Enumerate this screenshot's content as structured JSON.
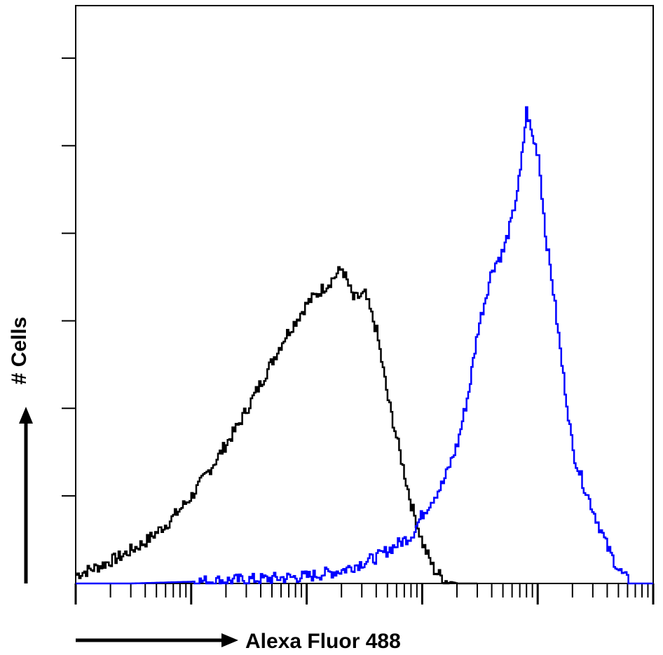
{
  "chart_data": {
    "type": "line",
    "title": "",
    "xlabel": "Alexa Fluor 488",
    "ylabel": "# Cells",
    "x_scale": "log",
    "xlim": [
      1,
      100000
    ],
    "ylim": [
      0,
      660
    ],
    "grid": false,
    "tick_labels_printed": false,
    "series": [
      {
        "color": "#000000",
        "x": [
          1,
          1.6,
          2.5,
          4,
          6.3,
          10,
          16,
          25,
          40,
          63,
          100,
          158,
          200,
          251,
          316,
          398,
          501,
          631,
          794,
          1000,
          1259,
          1585,
          2000,
          2500,
          3000
        ],
        "y": [
          10,
          20,
          32,
          48,
          70,
          100,
          140,
          180,
          230,
          280,
          320,
          345,
          360,
          325,
          330,
          288,
          210,
          150,
          90,
          45,
          15,
          3,
          0,
          0,
          0
        ]
      },
      {
        "color": "#0000ff",
        "x": [
          1,
          3,
          10,
          40,
          100,
          200,
          400,
          800,
          1000,
          1500,
          2000,
          2500,
          3000,
          4000,
          5000,
          6000,
          7000,
          7900,
          8900,
          10000,
          11500,
          13000,
          16000,
          20000,
          25000,
          31600,
          40000,
          50000,
          63000,
          100000
        ],
        "y": [
          0,
          0,
          2,
          5,
          8,
          15,
          30,
          55,
          80,
          115,
          160,
          220,
          290,
          360,
          380,
          420,
          470,
          540,
          510,
          490,
          400,
          350,
          250,
          150,
          110,
          75,
          40,
          15,
          0,
          0
        ]
      }
    ]
  }
}
